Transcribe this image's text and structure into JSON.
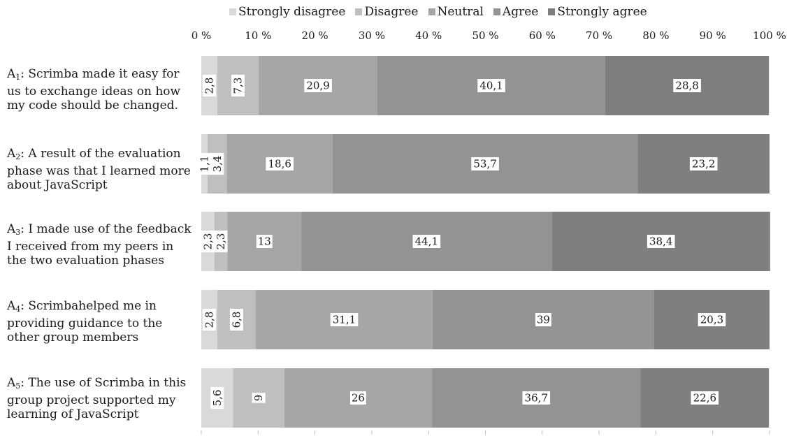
{
  "chart_data": {
    "type": "bar",
    "orientation": "horizontal",
    "stacked": true,
    "xlim": [
      0,
      100
    ],
    "xticks": [
      "0 %",
      "10 %",
      "20 %",
      "30 %",
      "40 %",
      "50 %",
      "60 %",
      "70 %",
      "80 %",
      "90 %",
      "100 %"
    ],
    "legend_position": "top",
    "categories": [
      {
        "prefix": "A",
        "sub": "1",
        "text": ": Scrimba made it easy for us to exchange ideas on how my code should be changed."
      },
      {
        "prefix": "A",
        "sub": "2",
        "text": ": A result of the evaluation phase was that I learned more about JavaScript"
      },
      {
        "prefix": "A",
        "sub": "3",
        "text": ": I made use of the feedback I received from my peers in the two evaluation phases"
      },
      {
        "prefix": "A",
        "sub": "4",
        "text": ": Scrimbahelped me in providing guidance to the other group members"
      },
      {
        "prefix": "A",
        "sub": "5",
        "text": ": The use of Scrimba in this group project supported my learning of JavaScript"
      }
    ],
    "series": [
      {
        "name": "Strongly disagree",
        "color": "#d9d9d9",
        "values": [
          2.8,
          1.1,
          2.3,
          2.8,
          5.6
        ],
        "labels": [
          "2,8",
          "1,1",
          "2,3",
          "2,8",
          "5,6"
        ],
        "vertical_labels": [
          true,
          true,
          true,
          true,
          true
        ]
      },
      {
        "name": "Disagree",
        "color": "#bfbfbf",
        "values": [
          7.3,
          3.4,
          2.3,
          6.8,
          9
        ],
        "labels": [
          "7,3",
          "3,4",
          "2,3",
          "6,8",
          "9"
        ],
        "vertical_labels": [
          true,
          true,
          true,
          true,
          true
        ]
      },
      {
        "name": "Neutral",
        "color": "#a6a6a6",
        "values": [
          20.9,
          18.6,
          13,
          31.1,
          26
        ],
        "labels": [
          "20,9",
          "18,6",
          "13",
          "31,1",
          "26"
        ],
        "vertical_labels": [
          false,
          false,
          false,
          false,
          false
        ]
      },
      {
        "name": "Agree",
        "color": "#939393",
        "values": [
          40.1,
          53.7,
          44.1,
          39,
          36.7
        ],
        "labels": [
          "40,1",
          "53,7",
          "44,1",
          "39",
          "36,7"
        ],
        "vertical_labels": [
          false,
          false,
          false,
          false,
          false
        ]
      },
      {
        "name": "Strongly agree",
        "color": "#7f7f7f",
        "values": [
          28.8,
          23.2,
          38.4,
          20.3,
          22.6
        ],
        "labels": [
          "28,8",
          "23,2",
          "38,4",
          "20,3",
          "22,6"
        ],
        "vertical_labels": [
          false,
          false,
          false,
          false,
          false
        ]
      }
    ]
  }
}
